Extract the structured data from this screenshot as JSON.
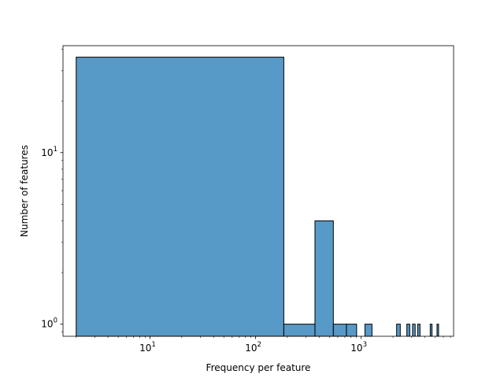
{
  "chart_data": {
    "type": "bar",
    "xlabel": "Frequency per feature",
    "ylabel": "Number of features",
    "x_scale": "log",
    "y_scale": "log",
    "xlim": [
      1.5,
      7500
    ],
    "ylim": [
      0.85,
      42
    ],
    "grid": false,
    "bar_color": "#5799c7",
    "edge_color": "#000000",
    "x_ticks": [
      {
        "value": 10,
        "base": "10",
        "exp": "1"
      },
      {
        "value": 100,
        "base": "10",
        "exp": "2"
      },
      {
        "value": 1000,
        "base": "10",
        "exp": "3"
      }
    ],
    "y_ticks": [
      {
        "value": 1,
        "base": "10",
        "exp": "0"
      },
      {
        "value": 10,
        "base": "10",
        "exp": "1"
      }
    ],
    "bins": [
      {
        "x0": 2,
        "x1": 185,
        "count": 36
      },
      {
        "x0": 185,
        "x1": 365,
        "count": 1
      },
      {
        "x0": 365,
        "x1": 545,
        "count": 4
      },
      {
        "x0": 545,
        "x1": 725,
        "count": 1
      },
      {
        "x0": 725,
        "x1": 905,
        "count": 1
      },
      {
        "x0": 1085,
        "x1": 1265,
        "count": 1
      },
      {
        "x0": 2165,
        "x1": 2345,
        "count": 1
      },
      {
        "x0": 2705,
        "x1": 2885,
        "count": 1
      },
      {
        "x0": 3065,
        "x1": 3245,
        "count": 1
      },
      {
        "x0": 3425,
        "x1": 3605,
        "count": 1
      },
      {
        "x0": 4505,
        "x1": 4685,
        "count": 1
      },
      {
        "x0": 5225,
        "x1": 5405,
        "count": 1
      }
    ]
  }
}
